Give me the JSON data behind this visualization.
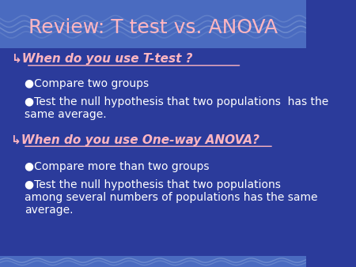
{
  "title": "Review: T test vs. ANOVA",
  "title_color": "#FFB6C1",
  "bg_color": "#2B3B9B",
  "header_bg": "#4A6BC0",
  "body_text_color": "#FFFFFF",
  "bullet1_header": "When do you use T-test ?",
  "bullet1_sub1": "Compare two groups",
  "bullet1_sub2": "Test the null hypothesis that two populations  has the\nsame average.",
  "bullet2_header": "When do you use One-way ANOVA?",
  "bullet2_sub1": "Compare more than two groups",
  "bullet2_sub2": "Test the null hypothesis that two populations\namong several numbers of populations has the same\naverage.",
  "bullet_color": "#FFB6C1",
  "sub_bullet_color": "#FF6B6B",
  "figsize": [
    4.5,
    3.38
  ],
  "dpi": 100
}
